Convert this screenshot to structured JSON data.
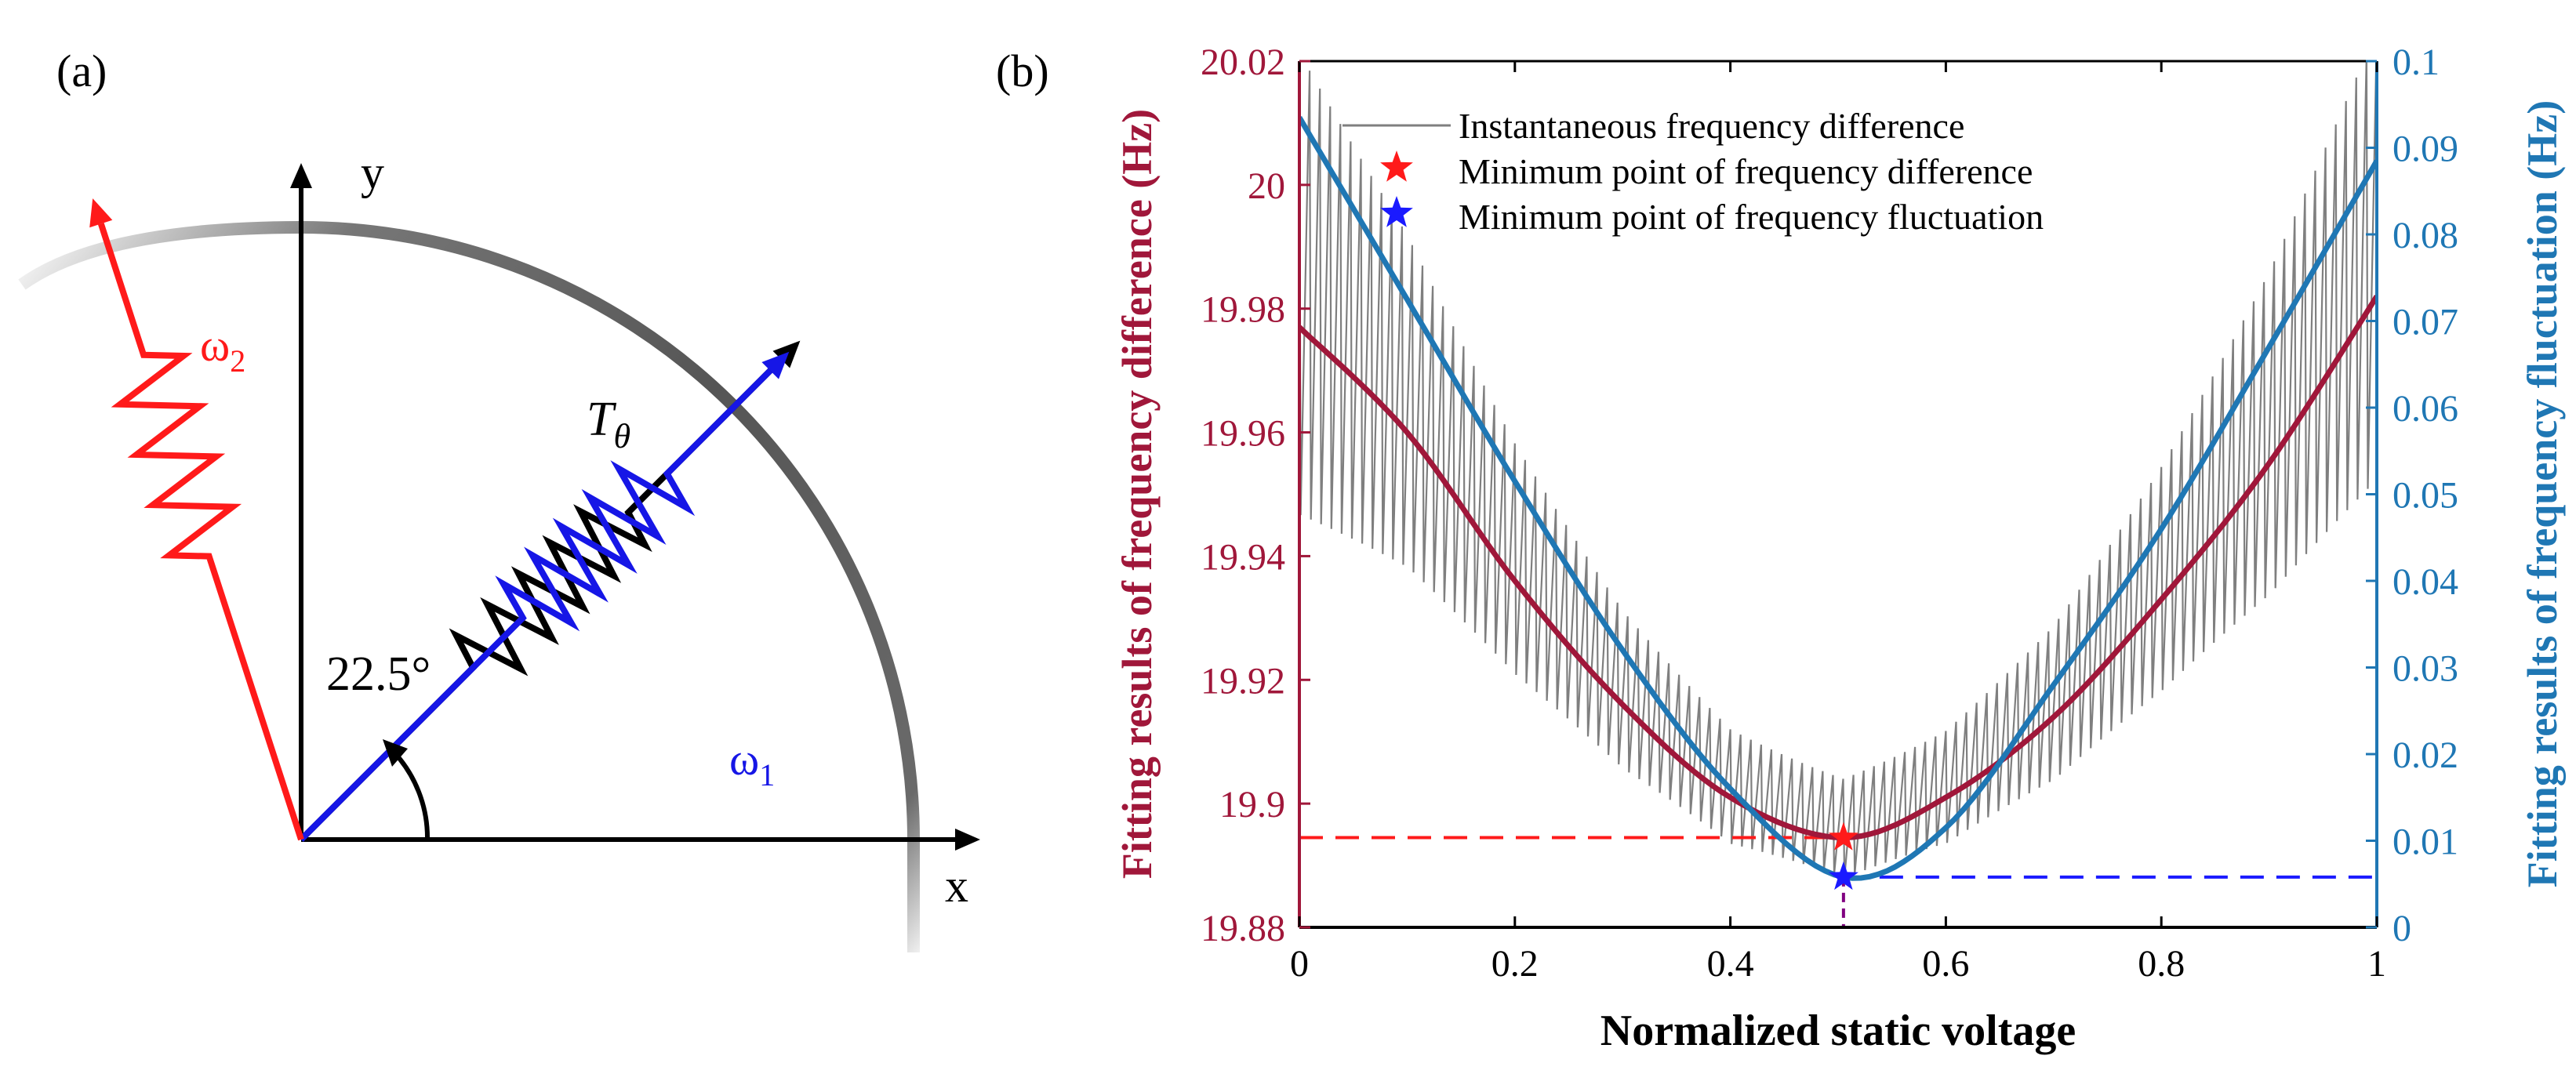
{
  "panel_a": {
    "label": "(a)",
    "x_axis_label": "x",
    "y_axis_label": "y",
    "angle_label": "22.5°",
    "angle_deg": 22.5,
    "t_theta": {
      "main": "T",
      "sub": "θ"
    },
    "omega1": {
      "main": "ω",
      "sub": "1"
    },
    "omega2": {
      "main": "ω",
      "sub": "2"
    },
    "colors": {
      "omega1": "#1616e6",
      "omega2": "#ff1a1a",
      "t_theta": "#000000",
      "arc": "#555555"
    }
  },
  "chart_data": {
    "type": "line",
    "panel_label": "(b)",
    "xlabel": "Normalized static voltage",
    "ylabel_left": "Fitting results of frequency difference (Hz)",
    "ylabel_right": "Fitting results of frequency fluctuation (Hz)",
    "xlim": [
      0,
      1
    ],
    "ylim_left": [
      19.88,
      20.02
    ],
    "ylim_right": [
      0,
      0.1
    ],
    "xticks": [
      "0",
      "0.2",
      "0.4",
      "0.6",
      "0.8",
      "1"
    ],
    "xtick_values": [
      0,
      0.2,
      0.4,
      0.6,
      0.8,
      1
    ],
    "yticks_left": [
      "19.88",
      "19.9",
      "19.92",
      "19.94",
      "19.96",
      "19.98",
      "20",
      "20.02"
    ],
    "ytick_values_left": [
      19.88,
      19.9,
      19.92,
      19.94,
      19.96,
      19.98,
      20.0,
      20.02
    ],
    "yticks_right": [
      "0",
      "0.01",
      "0.02",
      "0.03",
      "0.04",
      "0.05",
      "0.06",
      "0.07",
      "0.08",
      "0.09",
      "0.1"
    ],
    "ytick_values_right": [
      0,
      0.01,
      0.02,
      0.03,
      0.04,
      0.05,
      0.06,
      0.07,
      0.08,
      0.09,
      0.1
    ],
    "legend_position": "top-left",
    "legend": [
      {
        "label": "Instantaneous frequency difference",
        "marker": "line",
        "color": "#7f7f7f"
      },
      {
        "label": "Minimum point of frequency difference",
        "marker": "star",
        "color": "#ff1a1a"
      },
      {
        "label": "Minimum point of frequency fluctuation",
        "marker": "star",
        "color": "#1a1aff"
      }
    ],
    "series": [
      {
        "name": "Fitting results of frequency difference",
        "axis": "left",
        "color": "#a0173a",
        "x": [
          0,
          0.1,
          0.2,
          0.3,
          0.4,
          0.505,
          0.6,
          0.7,
          0.8,
          0.9,
          1
        ],
        "values": [
          19.977,
          19.96,
          19.936,
          19.916,
          19.901,
          19.8945,
          19.901,
          19.914,
          19.933,
          19.955,
          19.982
        ]
      },
      {
        "name": "Fitting results of frequency fluctuation",
        "axis": "right",
        "color": "#1f77b4",
        "x": [
          0,
          0.1,
          0.2,
          0.3,
          0.4,
          0.505,
          0.6,
          0.7,
          0.8,
          0.9,
          1
        ],
        "values": [
          0.0935,
          0.0725,
          0.0515,
          0.032,
          0.016,
          0.0058,
          0.0115,
          0.028,
          0.046,
          0.067,
          0.0885
        ]
      },
      {
        "name": "Instantaneous frequency difference",
        "axis": "left",
        "color": "#7f7f7f",
        "oscillation_count": 105,
        "amplitude_at_edges": 0.046,
        "amplitude_at_minimum": 0.01
      }
    ],
    "annotations": [
      {
        "type": "star",
        "label": "Minimum point of frequency difference",
        "x": 0.505,
        "y_left": 19.8945,
        "color": "#ff1a1a"
      },
      {
        "type": "star",
        "label": "Minimum point of frequency fluctuation",
        "x": 0.505,
        "y_right": 0.0058,
        "color": "#1a1aff"
      },
      {
        "type": "hline-dashed",
        "axis": "left",
        "y": 19.8945,
        "x_range": [
          0,
          0.505
        ],
        "color": "#ff1a1a"
      },
      {
        "type": "hline-dashed",
        "axis": "right",
        "y": 0.0058,
        "x_range": [
          0.505,
          1
        ],
        "color": "#1a1aff"
      },
      {
        "type": "vline-dashed",
        "x": 0.505,
        "color": "#800080"
      }
    ]
  }
}
